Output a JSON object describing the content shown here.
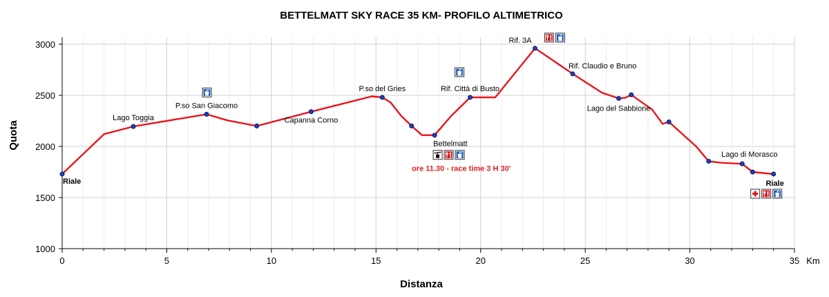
{
  "chart_data": {
    "type": "line",
    "title": "BETTELMATT SKY RACE 35 KM- PROFILO ALTIMETRICO",
    "xlabel": "Distanza",
    "ylabel": "Quota",
    "x_unit": "Km",
    "xlim": [
      0,
      35
    ],
    "ylim": [
      1000,
      3000
    ],
    "x_ticks": [
      0,
      5,
      10,
      15,
      20,
      25,
      30,
      35
    ],
    "y_ticks": [
      1000,
      1500,
      2000,
      2500,
      3000
    ],
    "grid": true,
    "series": [
      {
        "color": "#e8141b",
        "points": [
          [
            0,
            1730
          ],
          [
            2,
            2120
          ],
          [
            3.4,
            2195
          ],
          [
            6.9,
            2315
          ],
          [
            7.9,
            2255
          ],
          [
            9.3,
            2200
          ],
          [
            11.9,
            2340
          ],
          [
            14.8,
            2490
          ],
          [
            15.3,
            2480
          ],
          [
            15.7,
            2430
          ],
          [
            16.2,
            2300
          ],
          [
            16.7,
            2200
          ],
          [
            17.2,
            2110
          ],
          [
            17.8,
            2110
          ],
          [
            18.6,
            2300
          ],
          [
            19.5,
            2480
          ],
          [
            20.7,
            2480
          ],
          [
            22.6,
            2960
          ],
          [
            24.4,
            2710
          ],
          [
            25.8,
            2525
          ],
          [
            26.6,
            2470
          ],
          [
            26.9,
            2475
          ],
          [
            27.2,
            2505
          ],
          [
            28.2,
            2360
          ],
          [
            28.7,
            2220
          ],
          [
            29,
            2240
          ],
          [
            30.3,
            2000
          ],
          [
            30.9,
            1855
          ],
          [
            31.5,
            1840
          ],
          [
            32.5,
            1830
          ],
          [
            33.0,
            1750
          ],
          [
            34.0,
            1730
          ]
        ],
        "markers": [
          [
            0,
            1730
          ],
          [
            3.4,
            2195
          ],
          [
            6.9,
            2315
          ],
          [
            9.3,
            2200
          ],
          [
            11.9,
            2340
          ],
          [
            15.3,
            2480
          ],
          [
            16.7,
            2200
          ],
          [
            17.8,
            2110
          ],
          [
            19.5,
            2480
          ],
          [
            22.6,
            2960
          ],
          [
            24.4,
            2710
          ],
          [
            26.6,
            2470
          ],
          [
            27.2,
            2505
          ],
          [
            29,
            2240
          ],
          [
            30.9,
            1855
          ],
          [
            32.5,
            1830
          ],
          [
            33.0,
            1750
          ],
          [
            34.0,
            1730
          ]
        ]
      }
    ],
    "waypoints": [
      {
        "name": "Riale",
        "x": 0,
        "y": 1730,
        "pos": "below",
        "bold": true
      },
      {
        "name": "Lago Toggia",
        "x": 3.4,
        "y": 2195,
        "pos": "above"
      },
      {
        "name": "P.so San Giacomo",
        "x": 6.9,
        "y": 2315,
        "pos": "above",
        "icons": [
          "water-icon"
        ]
      },
      {
        "name": "Capanna Corno",
        "x": 11.9,
        "y": 2340,
        "pos": "below"
      },
      {
        "name": "P.so del Gries",
        "x": 15.3,
        "y": 2480,
        "pos": "above"
      },
      {
        "name": "Bettelmatt",
        "x": 17.8,
        "y": 2110,
        "pos": "below",
        "icons": [
          "aerial-lift-icon",
          "food-icon",
          "water-icon"
        ],
        "note": "ore 11.30 - race time 3 H 30'"
      },
      {
        "name": "Rif. Città di Busto",
        "x": 19.5,
        "y": 2480,
        "pos": "above",
        "icons": [
          "water-icon"
        ]
      },
      {
        "name": "Rif. 3A",
        "x": 22.6,
        "y": 2960,
        "pos": "above",
        "icons": [
          "food-icon",
          "water-icon"
        ]
      },
      {
        "name": "Rif. Claudio e Bruno",
        "x": 24.4,
        "y": 2710,
        "pos": "above"
      },
      {
        "name": "Lago del Sabbione",
        "x": 26.6,
        "y": 2470,
        "pos": "below"
      },
      {
        "name": "Lago di Morasco",
        "x": 32.5,
        "y": 1830,
        "pos": "above"
      },
      {
        "name": "Riale",
        "x": 34.0,
        "y": 1730,
        "pos": "below",
        "bold": true,
        "icons": [
          "first-aid-icon",
          "food-icon",
          "water-icon"
        ]
      }
    ]
  }
}
